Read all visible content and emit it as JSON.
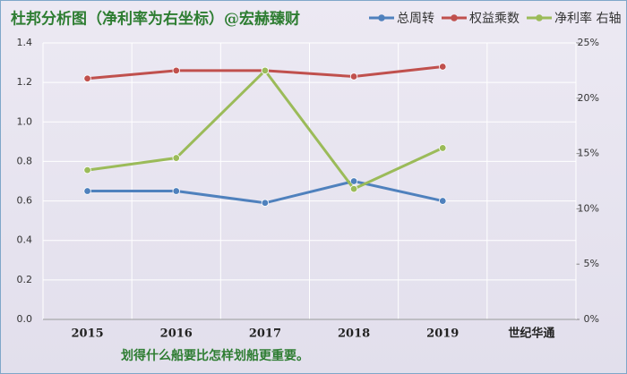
{
  "chart_data": {
    "type": "line",
    "title": "杜邦分析图（净利率为右坐标）@宏赫臻财",
    "annotation": "划得什么船要比怎样划船更重要。",
    "categories": [
      "2015",
      "2016",
      "2017",
      "2018",
      "2019",
      "世纪华通"
    ],
    "series": [
      {
        "name": "总周转",
        "color": "#4f81bd",
        "values": [
          0.65,
          0.65,
          0.59,
          0.7,
          0.6,
          null
        ]
      },
      {
        "name": "权益乘数",
        "color": "#c0504d",
        "values": [
          1.22,
          1.26,
          1.26,
          1.23,
          1.28,
          null
        ]
      },
      {
        "name": "净利率 右轴",
        "color": "#9bbb59",
        "axis": "y2",
        "values": [
          13.5,
          14.6,
          22.5,
          11.8,
          15.5,
          null
        ]
      }
    ],
    "ylim": [
      0,
      1.4
    ],
    "yticks": [
      {
        "value": 0,
        "label": "0.0"
      },
      0.2,
      0.4,
      0.6,
      0.8,
      {
        "value": 1,
        "label": "1.0"
      },
      1.2,
      1.4
    ],
    "y2lim": [
      0,
      25
    ],
    "y2ticks": [
      {
        "value": 0,
        "label": "0%"
      },
      {
        "value": 5,
        "label": "5%"
      },
      {
        "value": 10,
        "label": "10%"
      },
      {
        "value": 15,
        "label": "15%"
      },
      {
        "value": 20,
        "label": "20%"
      },
      {
        "value": 25,
        "label": "25%"
      }
    ],
    "grid": true,
    "legend": "top-right"
  }
}
